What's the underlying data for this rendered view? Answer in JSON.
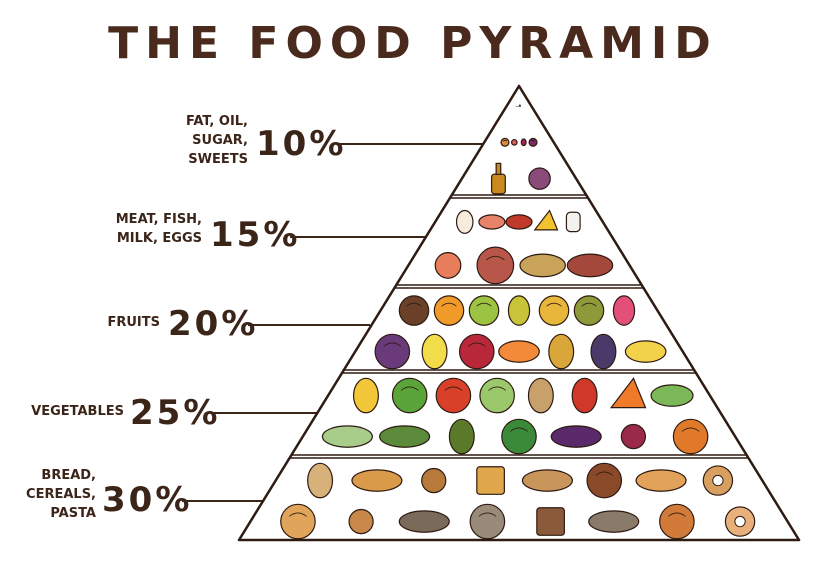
{
  "title": "THE FOOD PYRAMID",
  "tiers": [
    {
      "label_lines": [
        "FAT, OIL,",
        "SUGAR,",
        "SWEETS"
      ],
      "percent": "10%",
      "share": 10,
      "items": [
        "olive-oil-bottle",
        "ice-cream-cone",
        "cupcake",
        "muffin",
        "pastry",
        "candy",
        "jam-jar",
        "berry-pie",
        "syrup-bottle",
        "fig"
      ]
    },
    {
      "label_lines": [
        "MEAT, FISH,",
        "MILK, EGGS"
      ],
      "percent": "15%",
      "share": 15,
      "items": [
        "eggs",
        "salmon-steak",
        "lobster",
        "cheese-wedge",
        "milk-glass",
        "shrimp",
        "ham",
        "fish",
        "beef-steak"
      ]
    },
    {
      "label_lines": [
        "FRUITS"
      ],
      "percent": "20%",
      "share": 20,
      "items": [
        "coconut",
        "orange",
        "apple",
        "pear",
        "melon",
        "kiwi",
        "dragon-fruit",
        "grapes",
        "lemon",
        "pomegranate",
        "papaya",
        "pineapple",
        "plum",
        "bananas"
      ]
    },
    {
      "label_lines": [
        "VEGETABLES"
      ],
      "percent": "25%",
      "share": 25,
      "items": [
        "corn",
        "lettuce",
        "tomato",
        "cabbage",
        "potato",
        "bell-pepper",
        "carrot",
        "celery",
        "leek",
        "cucumber",
        "avocado",
        "broccoli",
        "eggplant",
        "beet",
        "pumpkin"
      ]
    },
    {
      "label_lines": [
        "BREAD,",
        "CEREALS,",
        "PASTA"
      ],
      "percent": "30%",
      "share": 30,
      "items": [
        "bread-loaf",
        "baguette",
        "pretzel",
        "waffle",
        "bread-basket",
        "pasta",
        "croissant",
        "bagel",
        "bun",
        "cookie",
        "rye-bread",
        "sourdough",
        "brown-bread",
        "long-loaf",
        "lattice-pie",
        "donut"
      ]
    }
  ]
}
